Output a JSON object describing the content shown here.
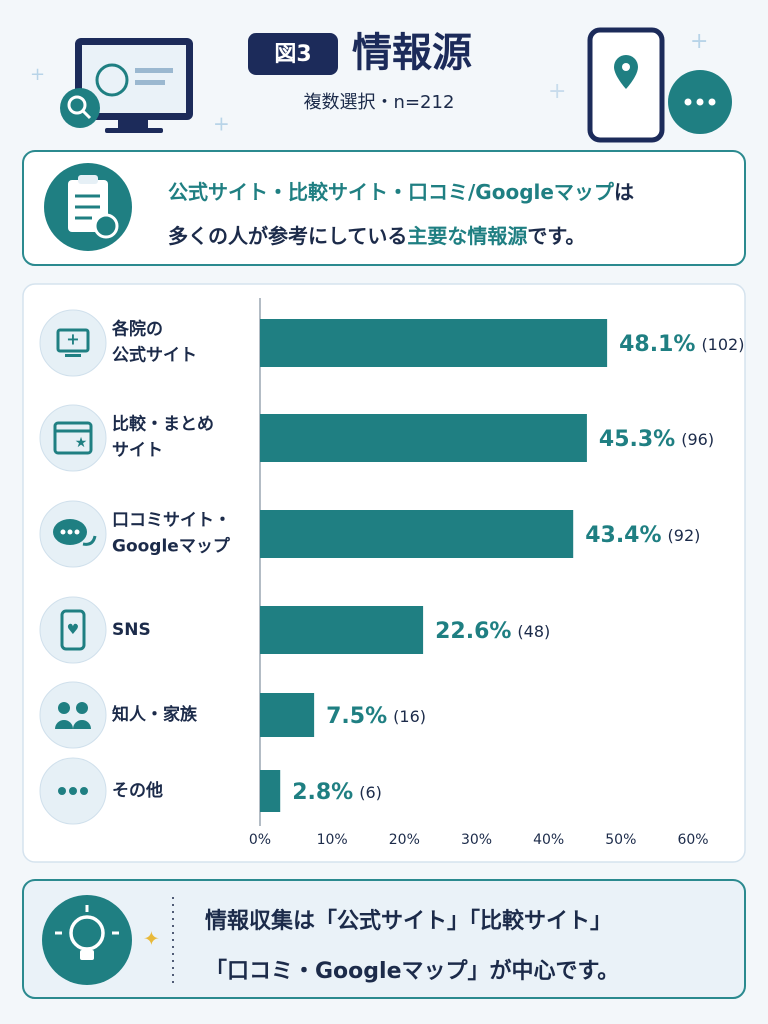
{
  "header": {
    "badge": "図3",
    "title": "情報源",
    "subtitle": "複数選択・n=212"
  },
  "summary": {
    "lines": [
      [
        {
          "text": "公式サイト・比較サイト・口コミ/Googleマップ",
          "color": "#1f7f82"
        },
        {
          "text": "は",
          "color": "#1c2b4a"
        }
      ],
      [
        {
          "text": "多くの人が参考にしている",
          "color": "#1c2b4a"
        },
        {
          "text": "主要な情報源",
          "color": "#1f7f82"
        },
        {
          "text": "です。",
          "color": "#1c2b4a"
        }
      ]
    ]
  },
  "chart_data": {
    "type": "bar",
    "orientation": "horizontal",
    "categories": [
      "各院の\n公式サイト",
      "比較・まとめ\nサイト",
      "口コミサイト・\nGoogleマップ",
      "SNS",
      "知人・家族",
      "その他"
    ],
    "values": [
      48.1,
      45.3,
      43.4,
      22.6,
      7.5,
      2.8
    ],
    "value_labels": [
      "48.1%",
      "45.3%",
      "43.4%",
      "22.6%",
      "7.5%",
      "2.8%"
    ],
    "count_labels": [
      "(102)",
      "(96)",
      "(92)",
      "(48)",
      "(16)",
      "(6)"
    ],
    "color": "#1f7f82",
    "xlim": [
      0,
      60
    ],
    "xticks": [
      {
        "value": 0,
        "label": "0%"
      },
      {
        "value": 10,
        "label": "10%"
      },
      {
        "value": 20,
        "label": "20%"
      },
      {
        "value": 30,
        "label": "30%"
      },
      {
        "value": 40,
        "label": "40%"
      },
      {
        "value": 50,
        "label": "50%"
      },
      {
        "value": 60,
        "label": "60%"
      }
    ]
  },
  "footer": {
    "lines": [
      "情報収集は「公式サイト」「比較サイト」",
      "「口コミ・Googleマップ」が中心です。"
    ]
  }
}
